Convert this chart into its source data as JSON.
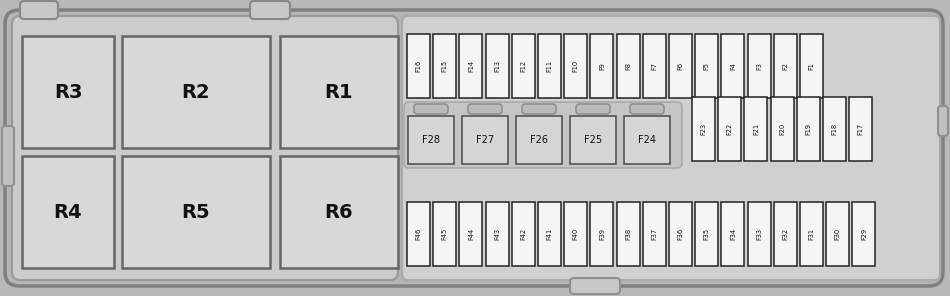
{
  "bg_outer": "#c0c0c0",
  "bg_inner": "#d0d0d0",
  "relay_fill": "#d8d8d8",
  "relay_edge": "#666666",
  "fuse_fill": "#f5f5f5",
  "fuse_edge": "#222222",
  "large_fuse_fill": "#d5d5d5",
  "large_fuse_edge": "#555555",
  "text_color": "#111111",
  "relay_data": [
    [
      "R3",
      22,
      148,
      92,
      112
    ],
    [
      "R2",
      122,
      148,
      148,
      112
    ],
    [
      "R1",
      280,
      148,
      118,
      112
    ],
    [
      "R4",
      22,
      28,
      92,
      112
    ],
    [
      "R5",
      122,
      28,
      148,
      112
    ],
    [
      "R6",
      280,
      28,
      118,
      112
    ]
  ],
  "top_fuses": [
    "F16",
    "F15",
    "F14",
    "F13",
    "F12",
    "F11",
    "F10",
    "F9",
    "F8",
    "F7",
    "F6",
    "F5",
    "F4",
    "F3",
    "F2",
    "F1"
  ],
  "mid_large_fuses": [
    "F28",
    "F27",
    "F26",
    "F25",
    "F24"
  ],
  "mid_right_fuses": [
    "F23",
    "F22",
    "F21",
    "F20",
    "F19",
    "F18",
    "F17"
  ],
  "bot_fuses": [
    "F46",
    "F45",
    "F44",
    "F43",
    "F42",
    "F41",
    "F40",
    "F39",
    "F38",
    "F37",
    "F36",
    "F35",
    "F34",
    "F33",
    "F32",
    "F31",
    "F30",
    "F29"
  ]
}
